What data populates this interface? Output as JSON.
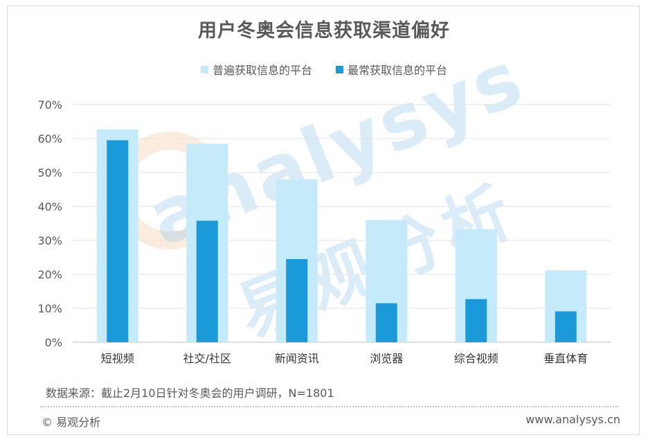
{
  "title": "用户冬奥会信息获取渠道偏好",
  "legend": [
    {
      "label": "普遍获取信息的平台",
      "color": "#c5ebfa"
    },
    {
      "label": "最常获取信息的平台",
      "color": "#1a9ad9"
    }
  ],
  "watermark": {
    "en": "analysys",
    "cn": "易观分析"
  },
  "source": "数据来源：截止2月10日针对冬奥会的用户调研，N=1801",
  "copyright": "© 易观分析",
  "website": "www.analysys.cn",
  "chart_data": {
    "type": "bar",
    "title": "用户冬奥会信息获取渠道偏好",
    "categories": [
      "短视频",
      "社交/社区",
      "新闻资讯",
      "浏览器",
      "综合视频",
      "垂直体育"
    ],
    "series": [
      {
        "name": "普遍获取信息的平台",
        "values": [
          62.7,
          58.5,
          48.0,
          36.0,
          33.3,
          21.2
        ],
        "color": "#c5ebfa"
      },
      {
        "name": "最常获取信息的平台",
        "values": [
          59.5,
          35.8,
          24.5,
          11.5,
          12.7,
          9.1
        ],
        "color": "#1a9ad9"
      }
    ],
    "ylim": [
      0,
      70
    ],
    "yticks": [
      "0%",
      "10%",
      "20%",
      "30%",
      "40%",
      "50%",
      "60%",
      "70%"
    ],
    "grid": true,
    "legend_position": "top"
  }
}
